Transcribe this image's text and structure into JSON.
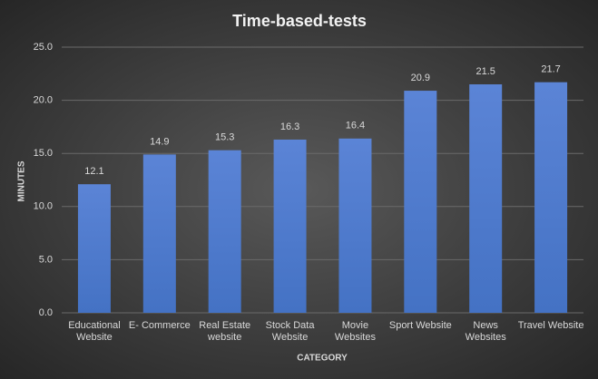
{
  "chart_data": {
    "type": "bar",
    "title": "Time-based-tests",
    "x_label": "CATEGORY",
    "y_label": "MINUTES",
    "categories": [
      "Educational Website",
      "E- Commerce",
      "Real Estate website",
      "Stock Data Website",
      "Movie Websites",
      "Sport Website",
      "News Websites",
      "Travel Website"
    ],
    "values": [
      12.1,
      14.9,
      15.3,
      16.3,
      16.4,
      20.9,
      21.5,
      21.7
    ],
    "color": "#4472c4",
    "ylim": [
      0,
      25
    ],
    "yticks": [
      {
        "value": 0,
        "label": "0.0"
      },
      {
        "value": 5,
        "label": "5.0"
      },
      {
        "value": 10,
        "label": "10.0"
      },
      {
        "value": 15,
        "label": "15.0"
      },
      {
        "value": 20,
        "label": "20.0"
      },
      {
        "value": 25,
        "label": "25.0"
      }
    ],
    "grid": true
  }
}
